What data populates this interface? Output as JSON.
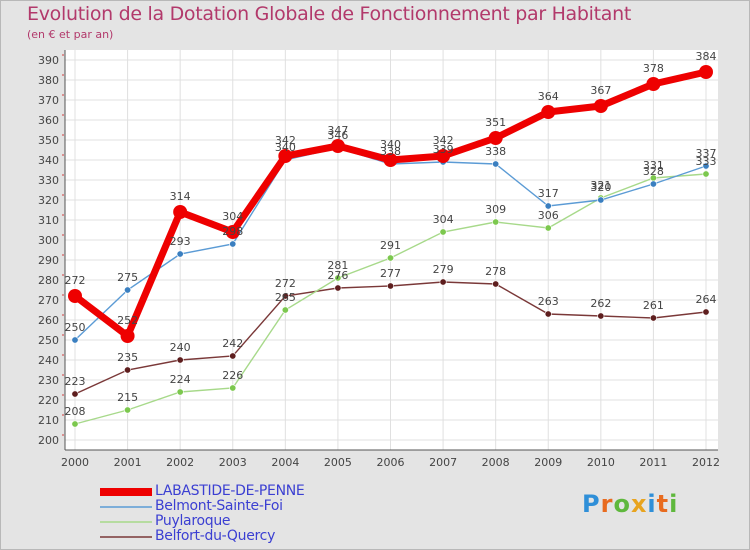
{
  "header": {
    "title": "Evolution de la Dotation Globale de Fonctionnement par Habitant",
    "subtitle": "(en € et par an)"
  },
  "logo": {
    "text": "Proxiti",
    "letters": [
      {
        "char": "P",
        "color": "#2f8fd8"
      },
      {
        "char": "r",
        "color": "#e86b1f"
      },
      {
        "char": "o",
        "color": "#5fb83d"
      },
      {
        "char": "x",
        "color": "#e8a41f"
      },
      {
        "char": "i",
        "color": "#2f8fd8"
      },
      {
        "char": "t",
        "color": "#e86b1f"
      },
      {
        "char": "i",
        "color": "#5fb83d"
      }
    ]
  },
  "chart_data": {
    "type": "line",
    "title": "Evolution de la Dotation Globale de Fonctionnement par Habitant",
    "subtitle": "(en € et par an)",
    "xlabel": "",
    "ylabel": "",
    "categories": [
      "2000",
      "2001",
      "2002",
      "2003",
      "2004",
      "2005",
      "2006",
      "2007",
      "2008",
      "2009",
      "2010",
      "2011",
      "2012"
    ],
    "ylim": [
      200,
      390
    ],
    "yticks": [
      200,
      210,
      220,
      230,
      240,
      250,
      260,
      270,
      280,
      290,
      300,
      310,
      320,
      330,
      340,
      350,
      360,
      370,
      380,
      390
    ],
    "grid": true,
    "legend_position": "bottom-left",
    "series": [
      {
        "name": "LABASTIDE-DE-PENNE",
        "color": "#ee0000",
        "emphasis": true,
        "values": [
          272,
          252,
          314,
          304,
          342,
          347,
          340,
          342,
          351,
          364,
          367,
          378,
          384
        ],
        "labels": [
          "272",
          "252",
          "314",
          "304",
          "342",
          "347",
          "340",
          "342",
          "351",
          "364",
          "367",
          "378",
          "384"
        ]
      },
      {
        "name": "Belmont-Sainte-Foi",
        "color": "#5b9bd5",
        "dot": "#3a7fc0",
        "values": [
          250,
          275,
          293,
          298,
          340,
          346,
          338,
          339,
          338,
          317,
          320,
          328,
          337
        ],
        "labels": [
          "250",
          "275",
          "293",
          "298",
          "340",
          "346",
          "338",
          "339",
          "338",
          "317",
          "320",
          "328",
          "337"
        ]
      },
      {
        "name": "Puylaroque",
        "color": "#a7d98a",
        "dot": "#7cc84e",
        "values": [
          208,
          215,
          224,
          226,
          265,
          281,
          291,
          304,
          309,
          306,
          321,
          331,
          333
        ],
        "labels": [
          "208",
          "215",
          "224",
          "226",
          "265",
          "281",
          "291",
          "304",
          "309",
          "306",
          "321",
          "331",
          "333"
        ]
      },
      {
        "name": "Belfort-du-Quercy",
        "color": "#7a3838",
        "dot": "#5e1e1e",
        "values": [
          223,
          235,
          240,
          242,
          272,
          276,
          277,
          279,
          278,
          263,
          262,
          261,
          264
        ],
        "labels": [
          "223",
          "235",
          "240",
          "242",
          "272",
          "276",
          "277",
          "279",
          "278",
          "263",
          "262",
          "261",
          "264"
        ]
      }
    ]
  }
}
